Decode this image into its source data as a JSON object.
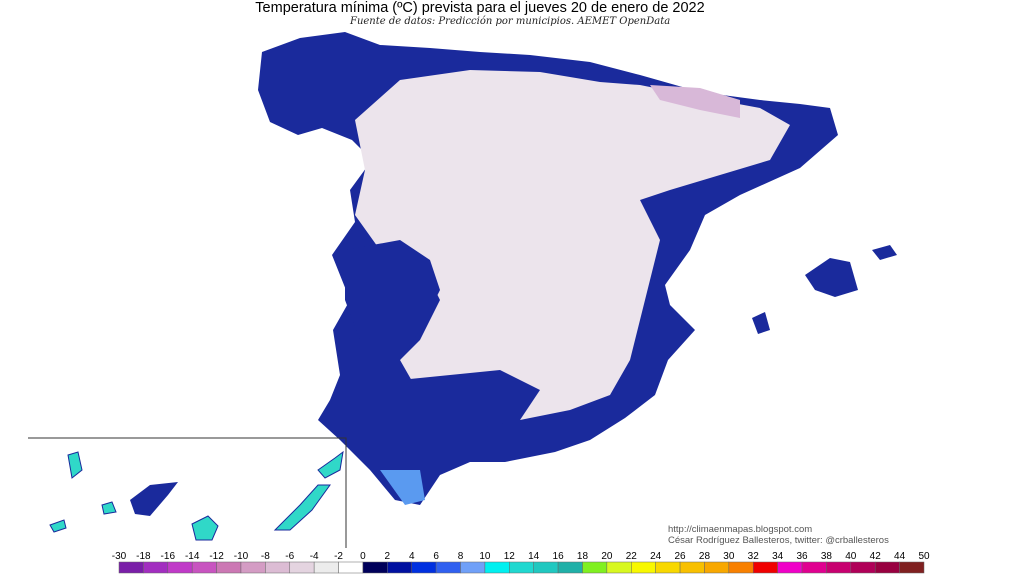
{
  "title": "Temperatura mínima (ºC) prevista para el jueves 20 de enero de 2022",
  "subtitle": "Fuente de datos: Predicción por municipios. AEMET OpenData",
  "credits": {
    "url": "http://climaenmapas.blogspot.com",
    "author": "César Rodríguez Ballesteros, twitter: @crballesteros"
  },
  "colors": {
    "coastal_mild": "#1a2a9c",
    "interior_cold": "#ece4ec",
    "canarias": "#30d8c8",
    "sea": "#ffffff"
  },
  "legend": {
    "labels": [
      "-30",
      "-18",
      "-16",
      "-14",
      "-12",
      "-10",
      "-8",
      "-6",
      "-4",
      "-2",
      "0",
      "2",
      "4",
      "6",
      "8",
      "10",
      "12",
      "14",
      "16",
      "18",
      "20",
      "22",
      "24",
      "26",
      "28",
      "30",
      "32",
      "34",
      "36",
      "38",
      "40",
      "42",
      "44",
      "50"
    ],
    "colors": [
      "#7a1fa8",
      "#a22ec0",
      "#c03ac8",
      "#c854c0",
      "#cc78b4",
      "#d49cc4",
      "#dcbcd4",
      "#e4d4e0",
      "#ececec",
      "#ffffff",
      "#00005a",
      "#0010a0",
      "#0030e0",
      "#3060f0",
      "#70a0f8",
      "#00f0f0",
      "#20d8d0",
      "#20c8c0",
      "#20b0a8",
      "#80f020",
      "#d8f820",
      "#f8f800",
      "#f8d800",
      "#f8c000",
      "#f8a800",
      "#f88000",
      "#f00000",
      "#f000c8",
      "#e00090",
      "#c80070",
      "#b00058",
      "#980040",
      "#802020"
    ]
  }
}
